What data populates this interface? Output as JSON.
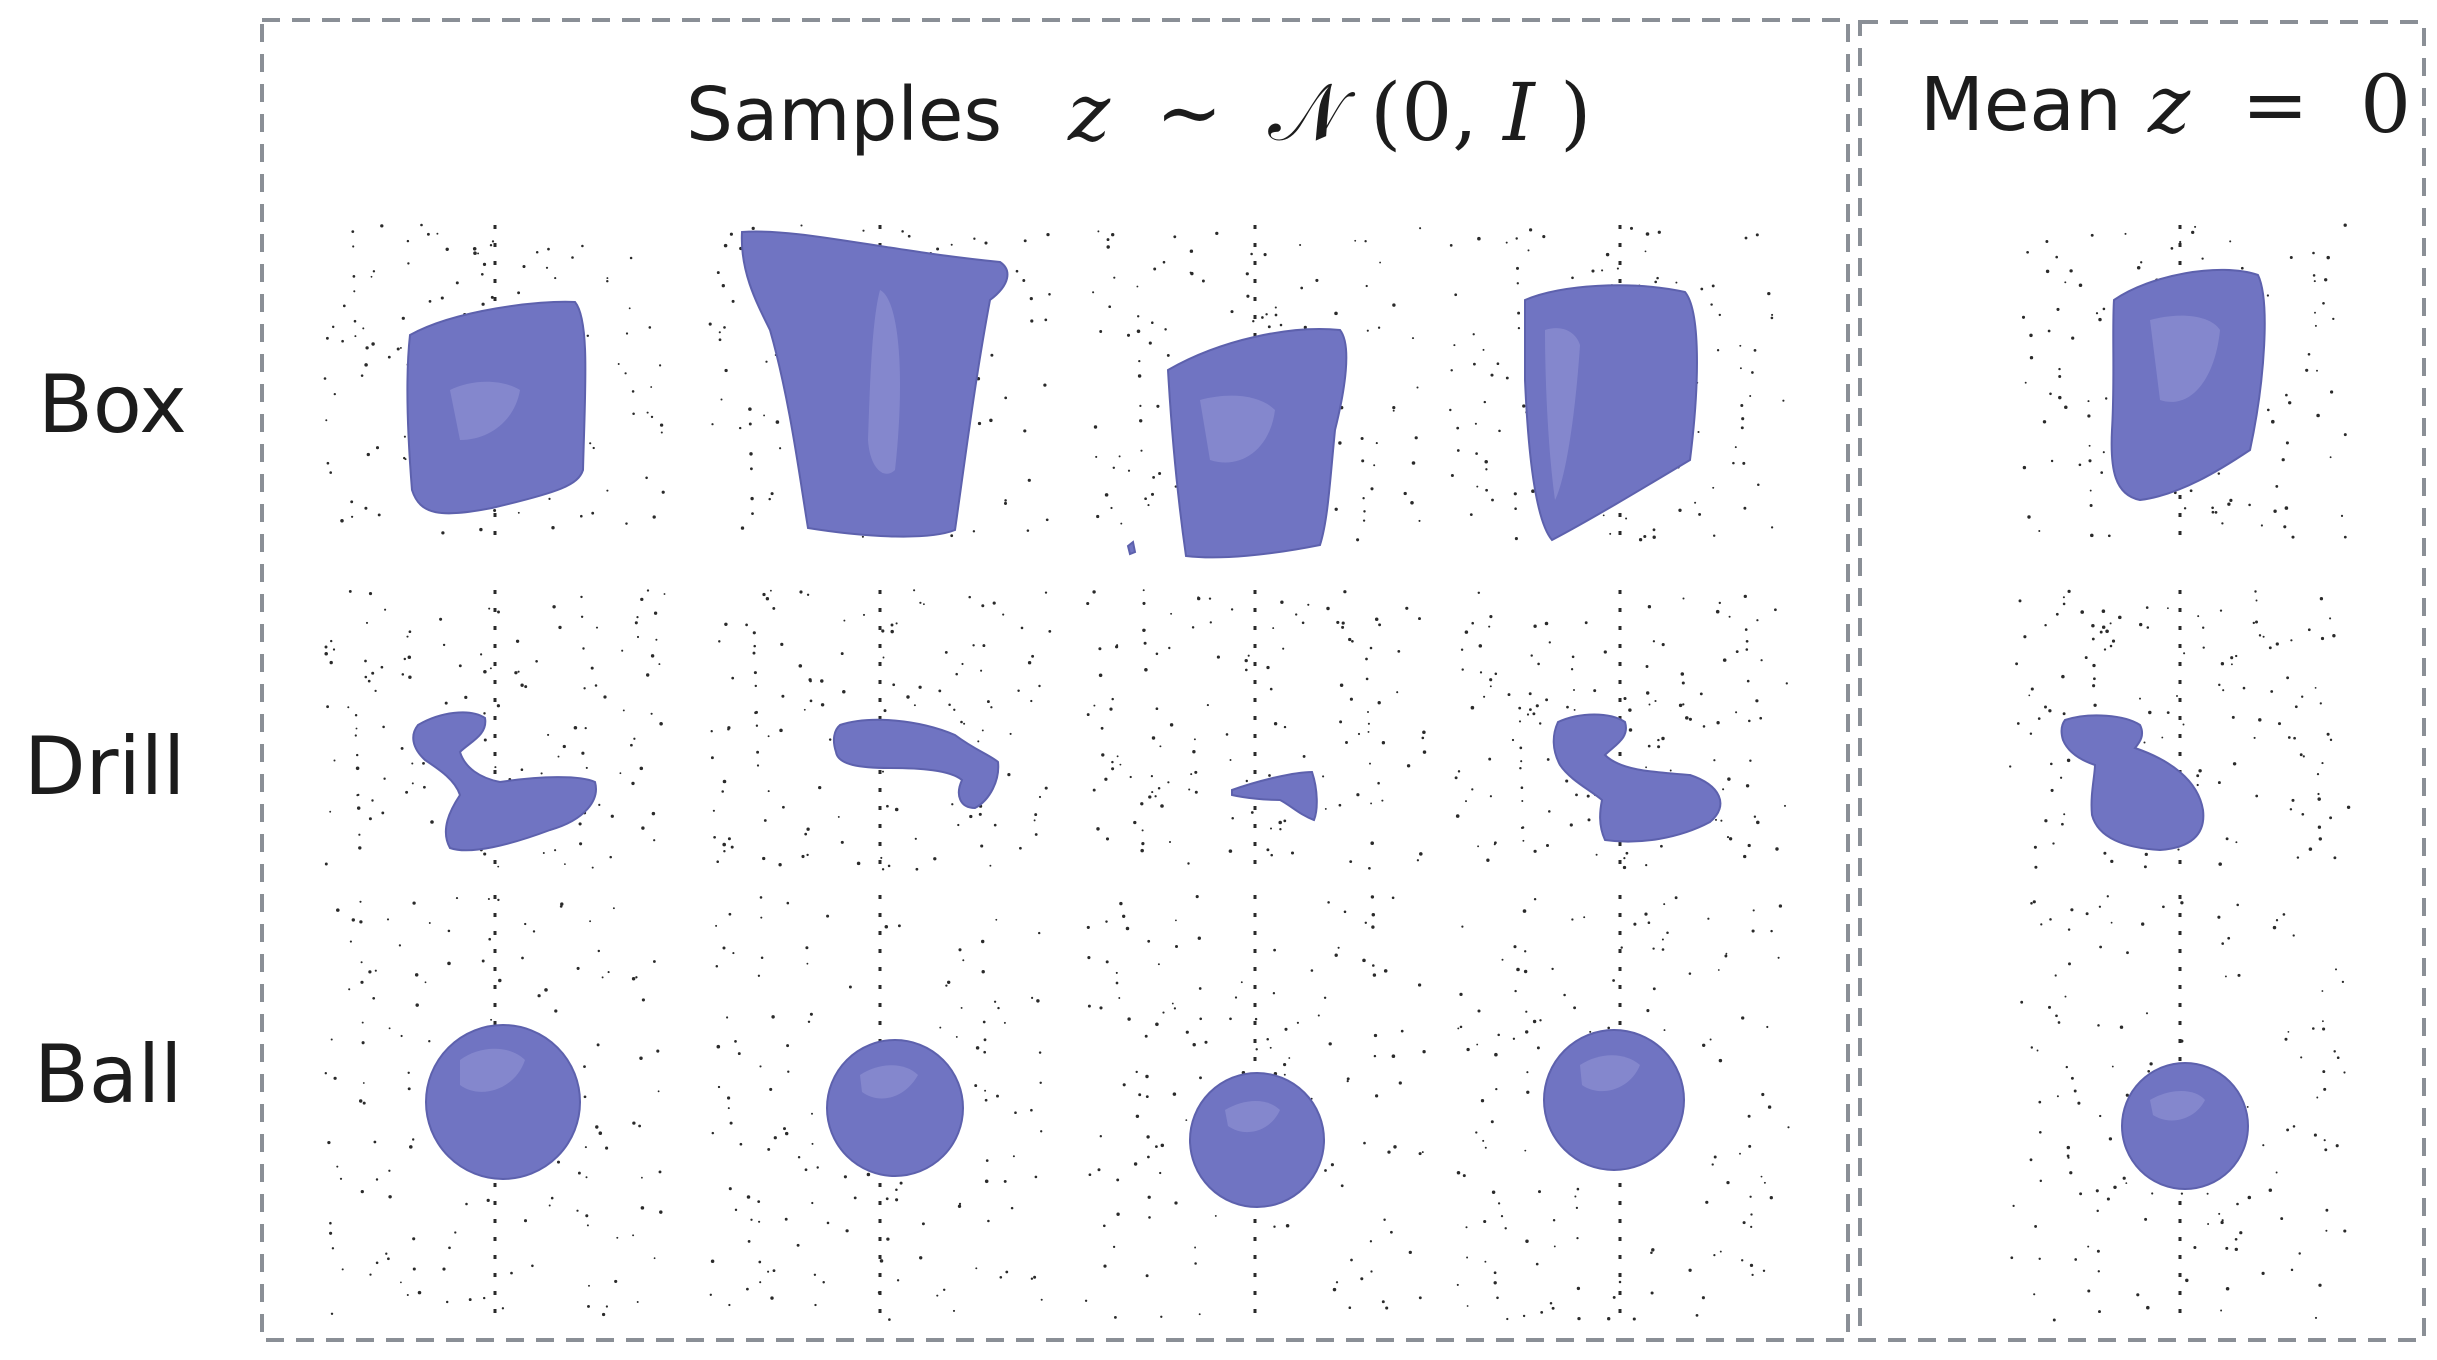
{
  "figure": {
    "samples_panel": {
      "title_word": "Samples",
      "title_math": {
        "var": "z",
        "sim": "∼",
        "dist": "𝒩",
        "args_open": "(0, ",
        "args_var": "I",
        "args_close": ")"
      }
    },
    "mean_panel": {
      "title_word": "Mean",
      "title_math": {
        "var": "z",
        "eq": "=",
        "value": "0"
      }
    },
    "rows": [
      {
        "label": "Box"
      },
      {
        "label": "Drill"
      },
      {
        "label": "Ball"
      }
    ],
    "shape_color": "#7074c2",
    "border_color": "#8a8f96"
  }
}
